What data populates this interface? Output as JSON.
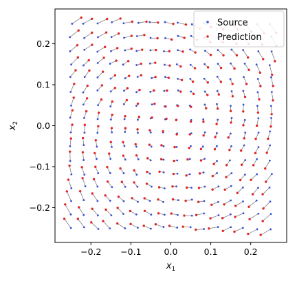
{
  "chart_data": {
    "type": "scatter",
    "xlabel": "x",
    "xlabel_sub": "1",
    "ylabel": "x",
    "ylabel_sub": "2",
    "xlim": [
      -0.29,
      0.29
    ],
    "ylim": [
      -0.285,
      0.285
    ],
    "xticks": [
      -0.2,
      -0.1,
      0.0,
      0.1,
      0.2
    ],
    "yticks": [
      -0.2,
      -0.1,
      0.0,
      0.1,
      0.2
    ],
    "xtick_labels": [
      "−0.2",
      "−0.1",
      "0.0",
      "0.1",
      "0.2"
    ],
    "ytick_labels": [
      "−0.2",
      "−0.1",
      "0.0",
      "0.1",
      "0.2"
    ],
    "grid": false,
    "legend_position": "top-right",
    "field": {
      "grid_min": -0.25,
      "grid_max": 0.25,
      "grid_count": 16,
      "rotation_rate": 0.55,
      "inward_rate": 0.12
    },
    "series": [
      {
        "name": "Source",
        "color": "#3a4fd6",
        "marker": "dot"
      },
      {
        "name": "Prediction",
        "color": "#e02626",
        "marker": "dot"
      }
    ],
    "connector_color": "#7f7f7f"
  }
}
